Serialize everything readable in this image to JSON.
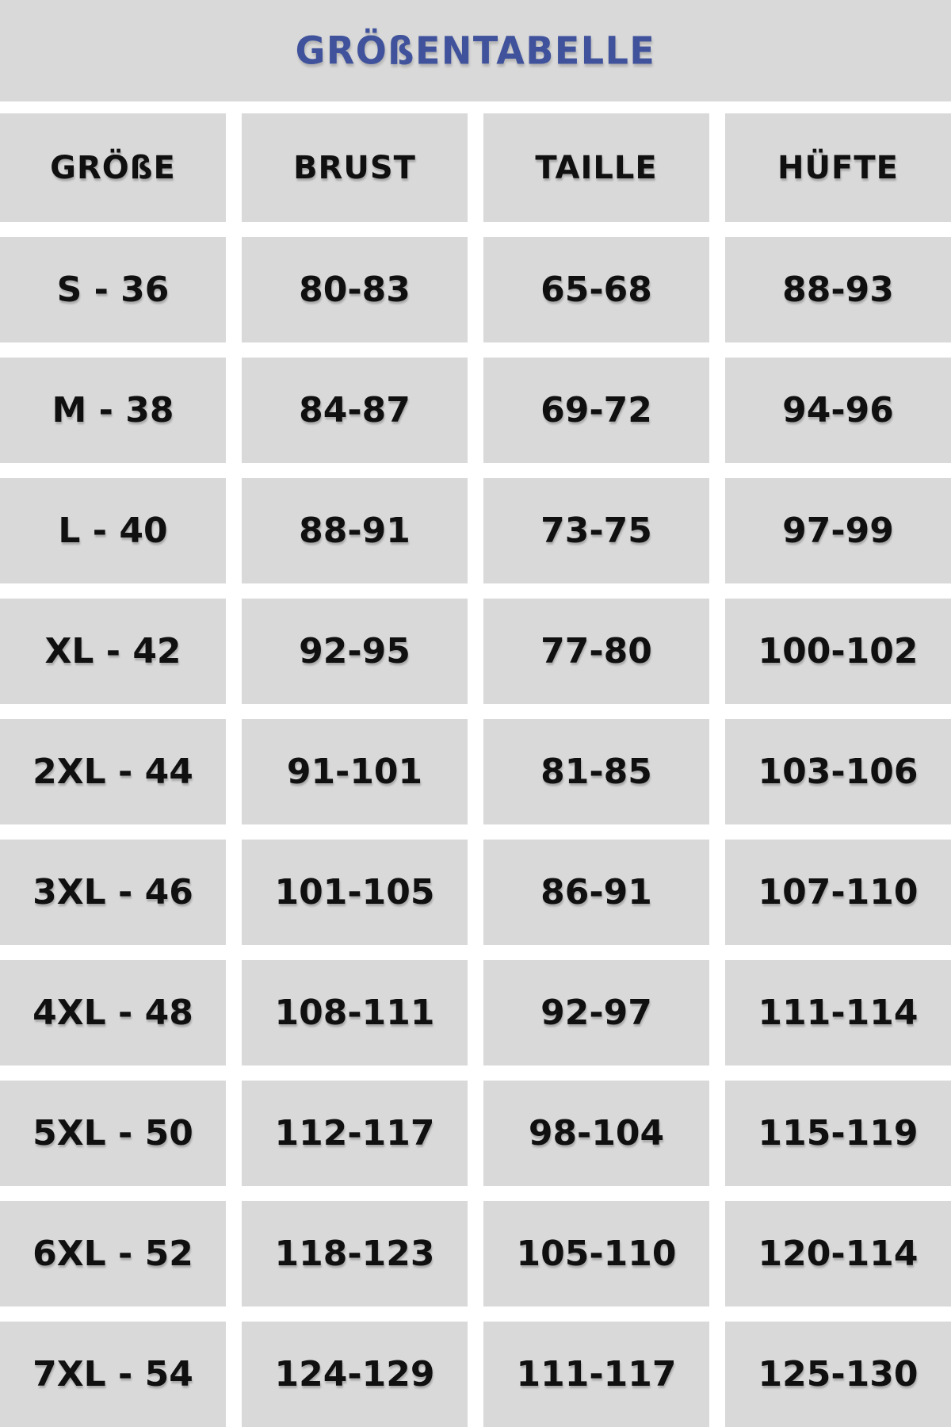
{
  "title": "GRÖßENTABELLE",
  "colors": {
    "accent_blue": "#3f529b",
    "cell_gray": "#d9d9d9",
    "gap_white": "#ffffff",
    "text_black": "#101010"
  },
  "chart_data": {
    "type": "table",
    "title": "GRÖßENTABELLE",
    "columns": [
      "GRÖßE",
      "BRUST",
      "TAILLE",
      "HÜFTE"
    ],
    "rows": [
      [
        "S - 36",
        "80-83",
        "65-68",
        "88-93"
      ],
      [
        "M - 38",
        "84-87",
        "69-72",
        "94-96"
      ],
      [
        "L - 40",
        "88-91",
        "73-75",
        "97-99"
      ],
      [
        "XL - 42",
        "92-95",
        "77-80",
        "100-102"
      ],
      [
        "2XL - 44",
        "91-101",
        "81-85",
        "103-106"
      ],
      [
        "3XL - 46",
        "101-105",
        "86-91",
        "107-110"
      ],
      [
        "4XL - 48",
        "108-111",
        "92-97",
        "111-114"
      ],
      [
        "5XL - 50",
        "112-117",
        "98-104",
        "115-119"
      ],
      [
        "6XL - 52",
        "118-123",
        "105-110",
        "120-114"
      ],
      [
        "7XL - 54",
        "124-129",
        "111-117",
        "125-130"
      ]
    ],
    "layout": {
      "legend": "none",
      "grid": "white gaps between gray cells",
      "header_position": "top row"
    }
  }
}
